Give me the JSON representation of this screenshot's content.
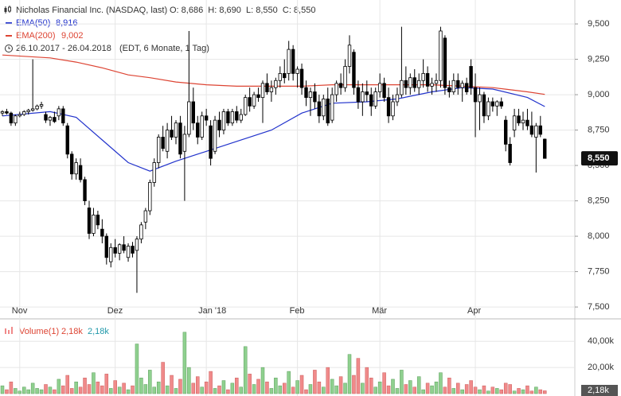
{
  "chart_data": [
    {
      "type": "candlestick",
      "title": "Nicholas Financial Inc. (NASDAQ, last)",
      "ohlc_text": "O: 8,686  H: 8,690  L: 8,550  C: 8,550",
      "period": "26.10.2017 - 26.04.2018",
      "period_note": "(EDT, 6 Monate, 1 Tag)",
      "last_label": "8,550",
      "up_color": "#ffffff",
      "down_color": "#000000",
      "ylim": [
        7.433,
        9.669
      ],
      "yticks": [
        {
          "value": 7.5,
          "label": "7,500"
        },
        {
          "value": 7.75,
          "label": "7,750"
        },
        {
          "value": 8,
          "label": "8,000"
        },
        {
          "value": 8.25,
          "label": "8,250"
        },
        {
          "value": 8.5,
          "label": "8,500"
        },
        {
          "value": 8.75,
          "label": "8,750"
        },
        {
          "value": 9,
          "label": "9,000"
        },
        {
          "value": 9.25,
          "label": "9,250"
        },
        {
          "value": 9.5,
          "label": "9,500"
        }
      ],
      "xlim": [
        -0.5,
        132
      ],
      "xticks": [
        {
          "value": 4,
          "label": "Nov"
        },
        {
          "value": 26,
          "label": "Dez"
        },
        {
          "value": 47,
          "label": "Jan '18"
        },
        {
          "value": 68,
          "label": "Feb"
        },
        {
          "value": 87,
          "label": "Mär"
        },
        {
          "value": 109,
          "label": "Apr"
        }
      ],
      "grid": true,
      "candles": [
        [
          8.87,
          8.89,
          8.85,
          8.88
        ],
        [
          8.88,
          8.9,
          8.86,
          8.87
        ],
        [
          8.87,
          8.88,
          8.78,
          8.8
        ],
        [
          8.8,
          8.86,
          8.78,
          8.85
        ],
        [
          8.85,
          8.88,
          8.84,
          8.86
        ],
        [
          8.86,
          8.89,
          8.85,
          8.88
        ],
        [
          8.88,
          8.9,
          8.86,
          8.89
        ],
        [
          8.89,
          9.25,
          8.88,
          8.9
        ],
        [
          8.9,
          8.93,
          8.89,
          8.92
        ],
        [
          8.92,
          8.95,
          8.9,
          8.93
        ],
        [
          8.86,
          8.88,
          8.8,
          8.82
        ],
        [
          8.82,
          8.85,
          8.78,
          8.84
        ],
        [
          8.84,
          8.88,
          8.8,
          8.81
        ],
        [
          8.85,
          8.92,
          8.82,
          8.9
        ],
        [
          8.9,
          8.92,
          8.78,
          8.8
        ],
        [
          8.78,
          8.8,
          8.55,
          8.58
        ],
        [
          8.58,
          8.6,
          8.4,
          8.44
        ],
        [
          8.44,
          8.55,
          8.4,
          8.52
        ],
        [
          8.5,
          8.55,
          8.38,
          8.4
        ],
        [
          8.4,
          8.42,
          8.22,
          8.25
        ],
        [
          8.2,
          8.25,
          7.98,
          8.02
        ],
        [
          8.02,
          8.2,
          8.0,
          8.15
        ],
        [
          8.15,
          8.18,
          8.05,
          8.08
        ],
        [
          8.05,
          8.12,
          7.95,
          8.0
        ],
        [
          8.0,
          8.02,
          7.8,
          7.85
        ],
        [
          7.82,
          7.95,
          7.78,
          7.92
        ],
        [
          7.92,
          7.98,
          7.85,
          7.88
        ],
        [
          7.88,
          7.95,
          7.83,
          7.94
        ],
        [
          7.94,
          8.0,
          7.88,
          7.9
        ],
        [
          7.85,
          7.95,
          7.82,
          7.93
        ],
        [
          7.93,
          7.96,
          7.85,
          7.88
        ],
        [
          7.9,
          8.0,
          7.6,
          7.98
        ],
        [
          7.98,
          8.1,
          7.95,
          8.08
        ],
        [
          8.1,
          8.2,
          8.05,
          8.18
        ],
        [
          8.18,
          8.4,
          8.15,
          8.38
        ],
        [
          8.38,
          8.55,
          8.35,
          8.52
        ],
        [
          8.52,
          8.72,
          8.48,
          8.7
        ],
        [
          8.7,
          8.78,
          8.6,
          8.62
        ],
        [
          8.6,
          8.8,
          8.55,
          8.75
        ],
        [
          8.75,
          8.85,
          8.68,
          8.7
        ],
        [
          8.7,
          8.82,
          8.65,
          8.8
        ],
        [
          8.8,
          8.85,
          8.55,
          8.58
        ],
        [
          8.6,
          8.78,
          8.25,
          8.72
        ],
        [
          8.72,
          9.45,
          8.7,
          8.95
        ],
        [
          8.95,
          9.05,
          8.75,
          8.8
        ],
        [
          8.8,
          8.85,
          8.65,
          8.7
        ],
        [
          8.7,
          8.88,
          8.68,
          8.85
        ],
        [
          8.85,
          8.9,
          8.78,
          8.82
        ],
        [
          8.78,
          8.82,
          8.5,
          8.55
        ],
        [
          8.6,
          8.85,
          8.58,
          8.82
        ],
        [
          8.82,
          8.88,
          8.7,
          8.75
        ],
        [
          8.75,
          8.9,
          8.72,
          8.88
        ],
        [
          8.88,
          8.9,
          8.78,
          8.8
        ],
        [
          8.8,
          8.9,
          8.78,
          8.88
        ],
        [
          8.88,
          8.92,
          8.8,
          8.82
        ],
        [
          8.82,
          8.9,
          8.8,
          8.86
        ],
        [
          8.86,
          9.0,
          8.85,
          8.98
        ],
        [
          8.98,
          9.05,
          8.88,
          8.92
        ],
        [
          8.92,
          9.02,
          8.9,
          9.0
        ],
        [
          9.0,
          9.05,
          8.95,
          8.98
        ],
        [
          8.98,
          9.1,
          8.8,
          9.08
        ],
        [
          9.08,
          9.15,
          9.0,
          9.02
        ],
        [
          9.02,
          9.1,
          8.95,
          9.05
        ],
        [
          9.05,
          9.12,
          9.0,
          9.1
        ],
        [
          9.1,
          9.2,
          9.05,
          9.15
        ],
        [
          9.15,
          9.25,
          9.08,
          9.12
        ],
        [
          9.15,
          9.38,
          9.1,
          9.32
        ],
        [
          9.32,
          9.35,
          9.1,
          9.15
        ],
        [
          9.15,
          9.2,
          9.05,
          9.18
        ],
        [
          9.18,
          9.22,
          9.0,
          9.05
        ],
        [
          9.05,
          9.1,
          8.92,
          8.98
        ],
        [
          8.98,
          9.05,
          8.85,
          9.02
        ],
        [
          9.02,
          9.08,
          8.9,
          8.95
        ],
        [
          8.95,
          9.0,
          8.8,
          8.85
        ],
        [
          8.85,
          9.0,
          8.82,
          8.97
        ],
        [
          8.97,
          9.05,
          8.78,
          8.8
        ],
        [
          8.82,
          9.05,
          8.8,
          9.0
        ],
        [
          9.0,
          9.1,
          8.95,
          9.08
        ],
        [
          9.08,
          9.15,
          9.0,
          9.05
        ],
        [
          9.05,
          9.25,
          9.02,
          9.2
        ],
        [
          9.2,
          9.42,
          9.15,
          9.35
        ],
        [
          9.3,
          9.32,
          9.0,
          9.05
        ],
        [
          9.05,
          9.1,
          8.9,
          8.95
        ],
        [
          8.95,
          9.08,
          8.85,
          9.02
        ],
        [
          9.02,
          9.1,
          8.95,
          9.0
        ],
        [
          9.0,
          9.05,
          8.85,
          8.92
        ],
        [
          8.92,
          9.05,
          8.9,
          9.02
        ],
        [
          9.02,
          9.15,
          8.98,
          9.08
        ],
        [
          9.08,
          9.12,
          8.95,
          8.98
        ],
        [
          8.98,
          9.05,
          8.8,
          8.85
        ],
        [
          8.85,
          9.0,
          8.82,
          8.95
        ],
        [
          8.95,
          9.05,
          8.92,
          9.0
        ],
        [
          9.0,
          9.48,
          8.98,
          9.1
        ],
        [
          9.1,
          9.2,
          9.0,
          9.05
        ],
        [
          9.05,
          9.15,
          9.0,
          9.12
        ],
        [
          9.12,
          9.18,
          9.02,
          9.05
        ],
        [
          9.05,
          9.15,
          9.0,
          9.1
        ],
        [
          9.1,
          9.25,
          9.05,
          9.15
        ],
        [
          9.15,
          9.2,
          9.02,
          9.06
        ],
        [
          9.06,
          9.12,
          9.0,
          9.08
        ],
        [
          9.08,
          9.15,
          9.02,
          9.1
        ],
        [
          9.1,
          9.48,
          9.05,
          9.45
        ],
        [
          9.4,
          9.42,
          9.0,
          9.05
        ],
        [
          9.05,
          9.1,
          8.98,
          9.02
        ],
        [
          9.02,
          9.15,
          9.0,
          9.1
        ],
        [
          9.1,
          9.15,
          9.0,
          9.05
        ],
        [
          9.05,
          9.1,
          8.95,
          9.08
        ],
        [
          9.08,
          9.12,
          9.0,
          9.02
        ],
        [
          9.2,
          9.25,
          9.0,
          9.05
        ],
        [
          9.05,
          9.15,
          8.7,
          8.95
        ],
        [
          8.95,
          9.05,
          8.75,
          9.0
        ],
        [
          9.0,
          9.02,
          8.8,
          8.85
        ],
        [
          8.85,
          8.98,
          8.82,
          8.95
        ],
        [
          8.95,
          8.98,
          8.88,
          8.92
        ],
        [
          8.92,
          8.96,
          8.85,
          8.95
        ],
        [
          8.95,
          8.98,
          8.9,
          8.92
        ],
        [
          8.82,
          8.85,
          8.6,
          8.65
        ],
        [
          8.65,
          8.7,
          8.5,
          8.52
        ],
        [
          8.75,
          8.9,
          8.7,
          8.85
        ],
        [
          8.85,
          8.9,
          8.78,
          8.8
        ],
        [
          8.8,
          8.88,
          8.75,
          8.82
        ],
        [
          8.82,
          8.9,
          8.75,
          8.78
        ],
        [
          8.78,
          8.88,
          8.7,
          8.72
        ],
        [
          8.7,
          8.8,
          8.45,
          8.78
        ],
        [
          8.78,
          8.85,
          8.7,
          8.72
        ],
        [
          8.686,
          8.69,
          8.55,
          8.55
        ]
      ],
      "series": [
        {
          "name": "EMA(50)",
          "value_label": "8,916",
          "color": "#2233cc",
          "x": [
            0,
            11,
            17,
            23,
            29,
            34,
            40,
            47,
            54,
            62,
            69,
            76,
            84,
            91,
            99,
            106,
            113,
            121,
            125
          ],
          "values": [
            8.85,
            8.88,
            8.84,
            8.68,
            8.52,
            8.46,
            8.53,
            8.6,
            8.67,
            8.75,
            8.87,
            8.94,
            8.95,
            8.97,
            9.02,
            9.05,
            9.04,
            8.98,
            8.916
          ]
        },
        {
          "name": "EMA(200)",
          "value_label": "9,002",
          "color": "#dd4433",
          "x": [
            0,
            11,
            17,
            23,
            29,
            34,
            40,
            47,
            54,
            62,
            69,
            76,
            84,
            91,
            99,
            106,
            113,
            121,
            125
          ],
          "values": [
            9.28,
            9.26,
            9.23,
            9.19,
            9.14,
            9.12,
            9.09,
            9.07,
            9.06,
            9.06,
            9.06,
            9.07,
            9.07,
            9.07,
            9.07,
            9.06,
            9.05,
            9.02,
            9.002
          ]
        }
      ]
    },
    {
      "type": "volume",
      "title": "Volume(1)",
      "value_label_1": "2,18k",
      "value_label_2": "2,18k",
      "last_label": "2,18k",
      "up_color": "#8fd08f",
      "down_color": "#f08a8a",
      "ylim": [
        0,
        56000
      ],
      "yticks": [
        {
          "value": 20000,
          "label": "20,00k"
        },
        {
          "value": 40000,
          "label": "40,00k"
        }
      ],
      "values": [
        6000,
        3000,
        9000,
        4000,
        2000,
        5000,
        3000,
        8000,
        4000,
        3000,
        7000,
        5000,
        3000,
        11000,
        6000,
        14000,
        4000,
        9000,
        5000,
        12000,
        7000,
        16000,
        9000,
        6000,
        15000,
        4000,
        10000,
        5000,
        8000,
        3000,
        6000,
        38000,
        12000,
        7000,
        18000,
        5000,
        9000,
        24000,
        6000,
        14000,
        4000,
        11000,
        47000,
        20000,
        8000,
        13000,
        5000,
        9000,
        17000,
        4000,
        6000,
        10000,
        3000,
        8000,
        12000,
        5000,
        36000,
        15000,
        7000,
        11000,
        20000,
        9000,
        4000,
        12000,
        6000,
        8000,
        17000,
        5000,
        10000,
        14000,
        3000,
        7000,
        18000,
        9000,
        5000,
        20000,
        11000,
        6000,
        13000,
        8000,
        30000,
        14000,
        27000,
        8000,
        20000,
        12000,
        5000,
        9000,
        16000,
        6000,
        11000,
        4000,
        18000,
        7000,
        10000,
        5000,
        13000,
        3000,
        8000,
        6000,
        9000,
        16000,
        5000,
        12000,
        4000,
        8000,
        3000,
        7000,
        10000,
        5000,
        3000,
        6000,
        2000,
        5000,
        4000,
        3000,
        8000,
        7000,
        2000,
        4000,
        3000,
        6000,
        2000,
        5000,
        3000,
        2180
      ]
    }
  ]
}
